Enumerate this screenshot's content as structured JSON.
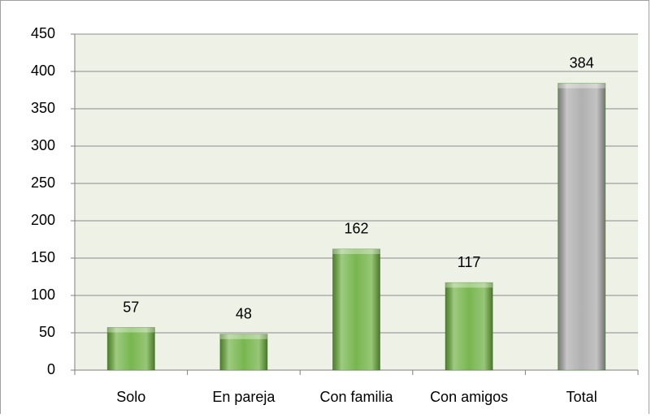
{
  "chart_data": {
    "type": "bar",
    "categories": [
      "Solo",
      "En pareja",
      "Con familia",
      "Con amigos",
      "Total"
    ],
    "values": [
      57,
      48,
      162,
      117,
      384
    ],
    "colors": [
      "#6aae3c",
      "#6aae3c",
      "#6aae3c",
      "#6aae3c",
      "#a8a8a8"
    ],
    "ylim": [
      0,
      450
    ],
    "yticks": [
      0,
      50,
      100,
      150,
      200,
      250,
      300,
      350,
      400,
      450
    ],
    "grid": true,
    "data_labels": true
  }
}
